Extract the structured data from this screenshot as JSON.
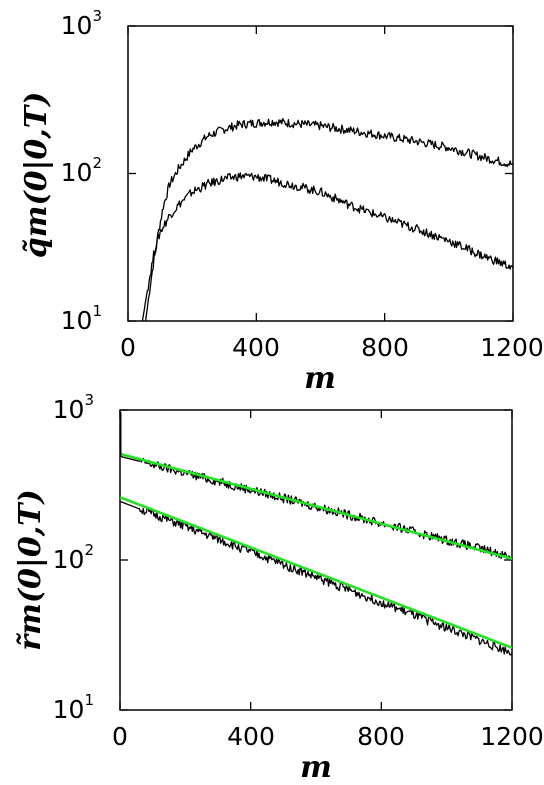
{
  "chart_data": [
    {
      "type": "line",
      "ylabel": "q̃m(0|0,T)",
      "xlabel": "m",
      "xlim": [
        0,
        1200
      ],
      "ylim": [
        10,
        1000
      ],
      "yscale": "log",
      "x_ticks": [
        "0",
        "400",
        "800",
        "1200"
      ],
      "y_ticks": [
        {
          "base": "10",
          "exp": "1"
        },
        {
          "base": "10",
          "exp": "2"
        },
        {
          "base": "10",
          "exp": "3"
        }
      ],
      "grid": false,
      "series": [
        {
          "color": "#000000",
          "x": [
            55,
            70,
            90,
            110,
            130,
            160,
            200,
            250,
            300,
            350,
            400,
            450,
            500,
            600,
            700,
            800,
            900,
            1000,
            1100,
            1200
          ],
          "y": [
            10,
            18,
            35,
            60,
            85,
            110,
            145,
            180,
            200,
            215,
            220,
            225,
            220,
            210,
            195,
            180,
            165,
            150,
            130,
            115
          ]
        },
        {
          "color": "#000000",
          "x": [
            45,
            60,
            80,
            100,
            130,
            160,
            200,
            250,
            300,
            350,
            400,
            450,
            500,
            600,
            700,
            800,
            900,
            1000,
            1100,
            1200
          ],
          "y": [
            10,
            16,
            28,
            40,
            52,
            62,
            75,
            85,
            92,
            96,
            95,
            90,
            85,
            75,
            60,
            50,
            42,
            35,
            28,
            23
          ]
        }
      ]
    },
    {
      "type": "line",
      "ylabel": "r̃m(0|0,T)",
      "xlabel": "m",
      "xlim": [
        0,
        1200
      ],
      "ylim": [
        10,
        1000
      ],
      "yscale": "log",
      "x_ticks": [
        "0",
        "400",
        "800",
        "1200"
      ],
      "y_ticks": [
        {
          "base": "10",
          "exp": "1"
        },
        {
          "base": "10",
          "exp": "2"
        },
        {
          "base": "10",
          "exp": "3"
        }
      ],
      "grid": false,
      "series": [
        {
          "color": "#000000",
          "x": [
            2,
            1200
          ],
          "y": [
            490,
            105
          ]
        },
        {
          "color": "#000000",
          "x": [
            2,
            1200
          ],
          "y": [
            245,
            24
          ]
        },
        {
          "color": "#22e022",
          "x": [
            0,
            1200
          ],
          "y": [
            510,
            102
          ]
        },
        {
          "color": "#22e022",
          "x": [
            0,
            1200
          ],
          "y": [
            262,
            26
          ]
        }
      ]
    }
  ]
}
